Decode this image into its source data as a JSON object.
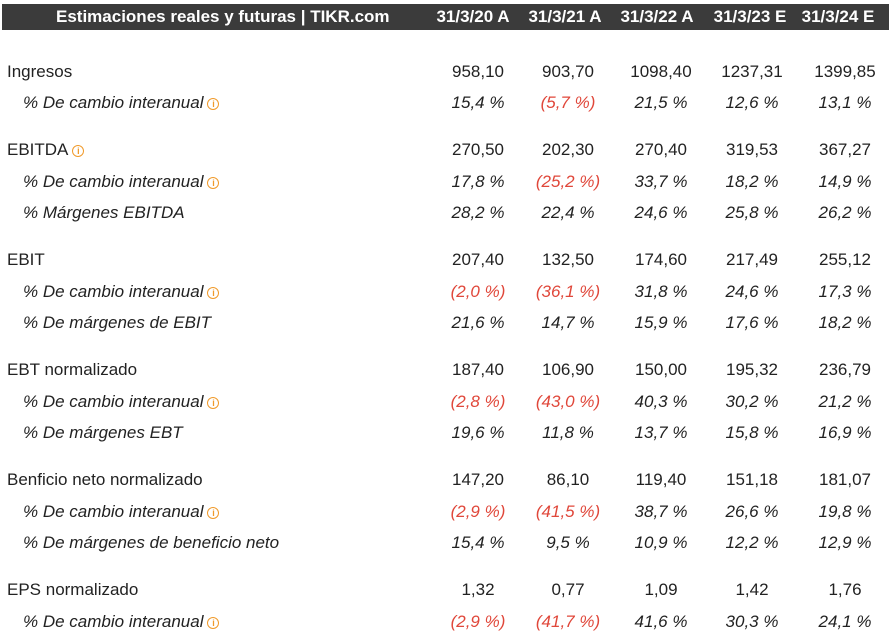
{
  "header": {
    "title": "Estimaciones reales y futuras | TIKR.com",
    "columns": [
      "31/3/20 A",
      "31/3/21 A",
      "31/3/22 A",
      "31/3/23 E",
      "31/3/24 E"
    ]
  },
  "rows": [
    {
      "label": "Ingresos",
      "sub": false,
      "info": false,
      "values": [
        "958,10",
        "903,70",
        "1098,40",
        "1237,31",
        "1399,85"
      ]
    },
    {
      "label": "% De cambio interanual",
      "sub": true,
      "info": true,
      "values": [
        "15,4 %",
        "(5,7 %)",
        "21,5 %",
        "12,6 %",
        "13,1 %"
      ]
    },
    {
      "label": "EBITDA",
      "sub": false,
      "info": true,
      "values": [
        "270,50",
        "202,30",
        "270,40",
        "319,53",
        "367,27"
      ]
    },
    {
      "label": "% De cambio interanual",
      "sub": true,
      "info": true,
      "values": [
        "17,8 %",
        "(25,2 %)",
        "33,7 %",
        "18,2 %",
        "14,9 %"
      ]
    },
    {
      "label": "% Márgenes EBITDA",
      "sub": true,
      "info": false,
      "values": [
        "28,2 %",
        "22,4 %",
        "24,6 %",
        "25,8 %",
        "26,2 %"
      ]
    },
    {
      "label": "EBIT",
      "sub": false,
      "info": false,
      "values": [
        "207,40",
        "132,50",
        "174,60",
        "217,49",
        "255,12"
      ]
    },
    {
      "label": "% De cambio interanual",
      "sub": true,
      "info": true,
      "values": [
        "(2,0 %)",
        "(36,1 %)",
        "31,8 %",
        "24,6 %",
        "17,3 %"
      ]
    },
    {
      "label": "% De márgenes de EBIT",
      "sub": true,
      "info": false,
      "values": [
        "21,6 %",
        "14,7 %",
        "15,9 %",
        "17,6 %",
        "18,2 %"
      ]
    },
    {
      "label": "EBT normalizado",
      "sub": false,
      "info": false,
      "values": [
        "187,40",
        "106,90",
        "150,00",
        "195,32",
        "236,79"
      ]
    },
    {
      "label": "% De cambio interanual",
      "sub": true,
      "info": true,
      "values": [
        "(2,8 %)",
        "(43,0 %)",
        "40,3 %",
        "30,2 %",
        "21,2 %"
      ]
    },
    {
      "label": "% De márgenes EBT",
      "sub": true,
      "info": false,
      "values": [
        "19,6 %",
        "11,8 %",
        "13,7 %",
        "15,8 %",
        "16,9 %"
      ]
    },
    {
      "label": "Benficio neto normalizado",
      "sub": false,
      "info": false,
      "values": [
        "147,20",
        "86,10",
        "119,40",
        "151,18",
        "181,07"
      ]
    },
    {
      "label": "% De cambio interanual",
      "sub": true,
      "info": true,
      "values": [
        "(2,9 %)",
        "(41,5 %)",
        "38,7 %",
        "26,6 %",
        "19,8 %"
      ]
    },
    {
      "label": "% De márgenes de beneficio neto",
      "sub": true,
      "info": false,
      "values": [
        "15,4 %",
        "9,5 %",
        "10,9 %",
        "12,2 %",
        "12,9 %"
      ]
    },
    {
      "label": "EPS normalizado",
      "sub": false,
      "info": false,
      "values": [
        "1,32",
        "0,77",
        "1,09",
        "1,42",
        "1,76"
      ]
    },
    {
      "label": "% De cambio interanual",
      "sub": true,
      "info": true,
      "values": [
        "(2,9 %)",
        "(41,7 %)",
        "41,6 %",
        "30,3 %",
        "24,1 %"
      ]
    }
  ],
  "colors": {
    "header_bg": "#3b3b3b",
    "negative": "#e0473a",
    "info_icon": "#f09a2b"
  }
}
